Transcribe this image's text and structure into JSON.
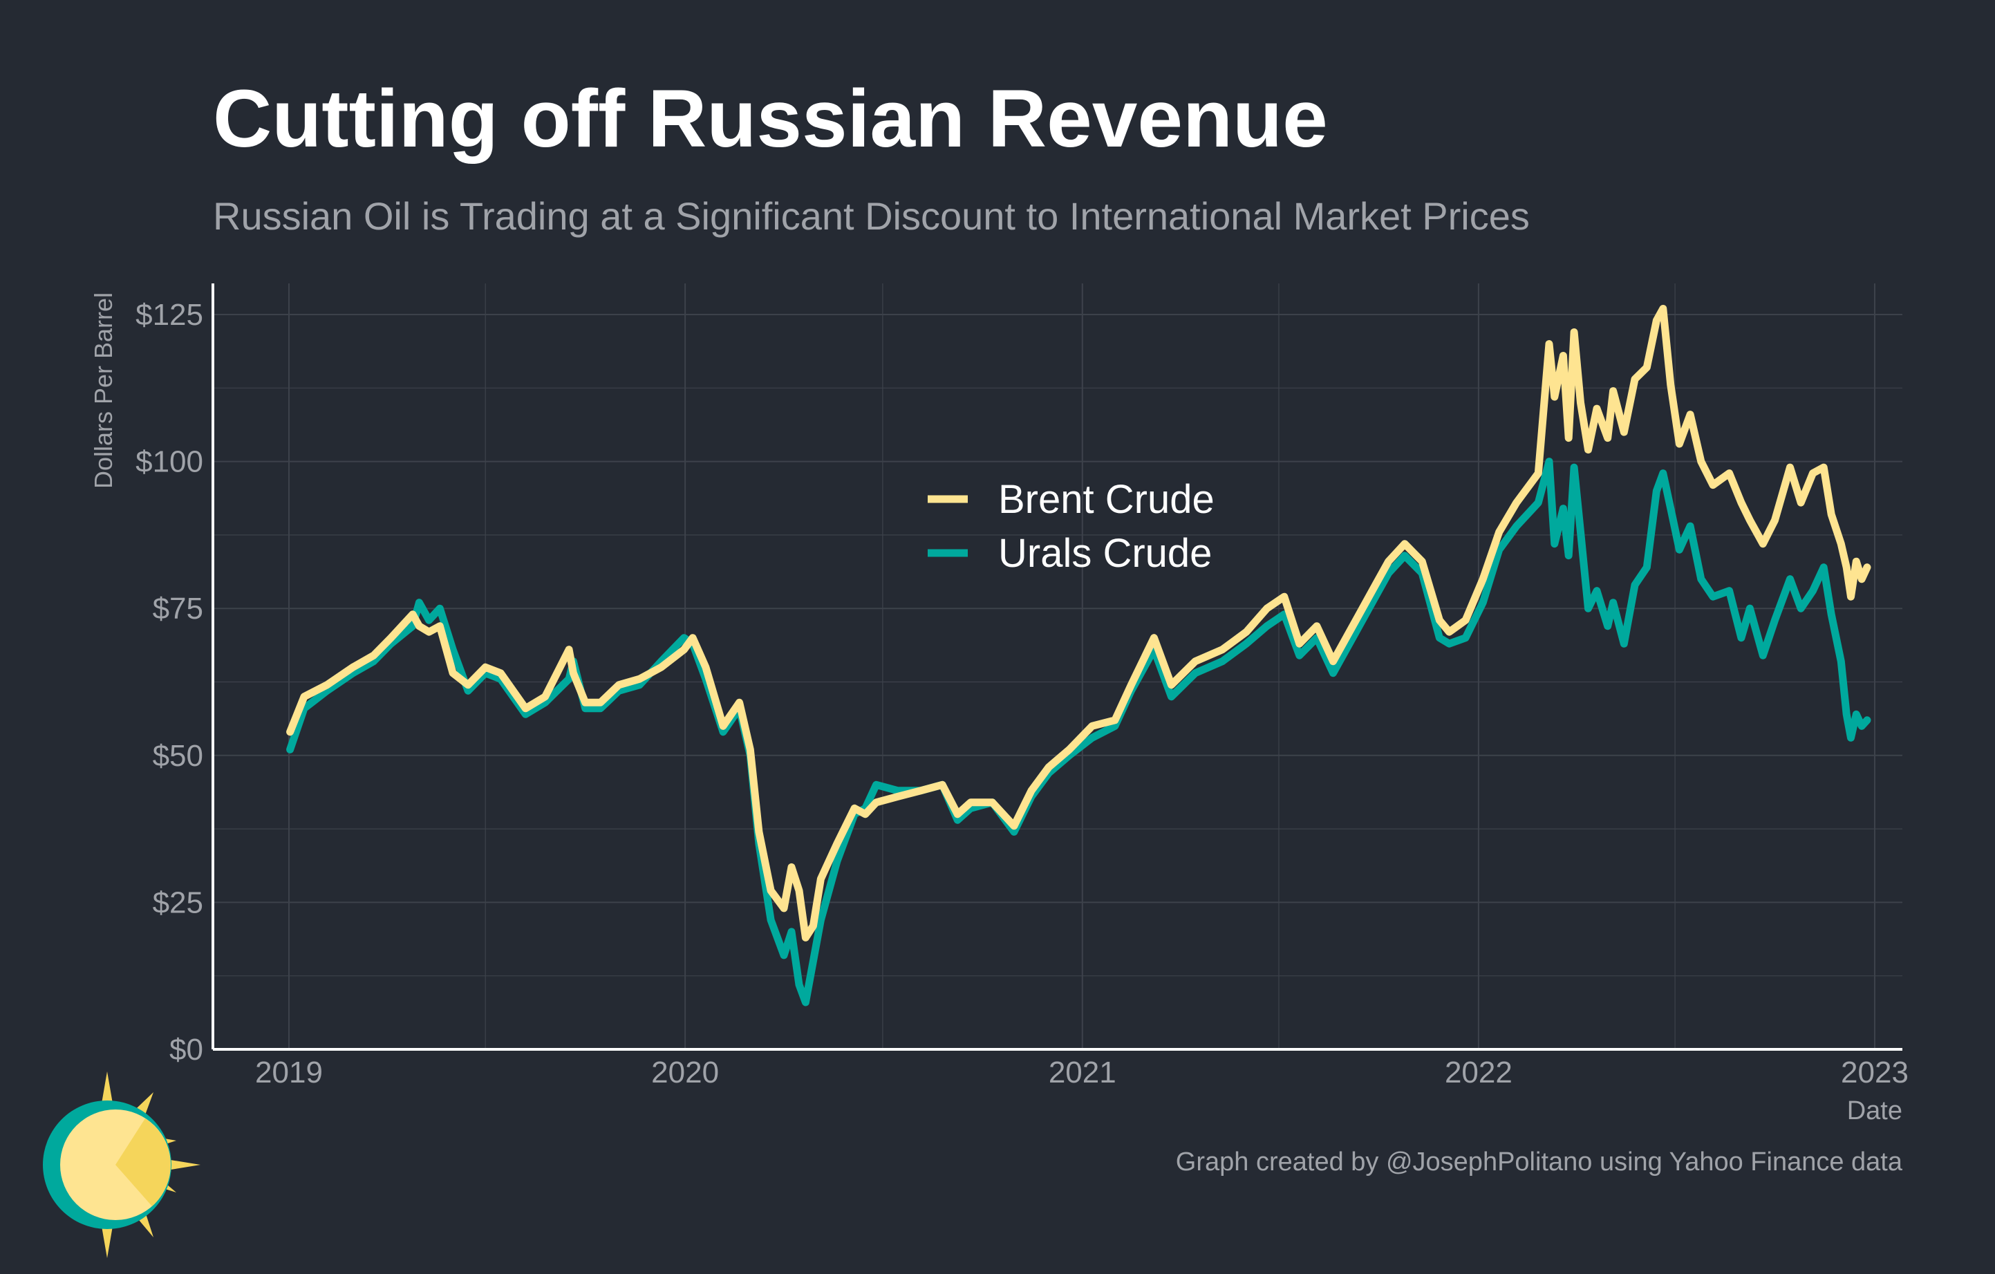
{
  "header": {
    "title": "Cutting off Russian Revenue",
    "subtitle": "Russian Oil is Trading at a Significant Discount to International Market Prices"
  },
  "footer": {
    "credit": "Graph created by @JosephPolitano using Yahoo Finance data"
  },
  "colors": {
    "background": "#252a33",
    "brent": "#fee491",
    "urals": "#00a99d",
    "grid": "#3d424b",
    "axis": "#ffffff",
    "tick_text": "#a0a3a9"
  },
  "chart_data": {
    "type": "line",
    "xlabel": "Date",
    "ylabel": "Dollars Per Barrel",
    "xlim": [
      "2019-01-01",
      "2023-01-01"
    ],
    "ylim": [
      0,
      125
    ],
    "x_ticks": [
      "2019",
      "2020",
      "2021",
      "2022",
      "2023"
    ],
    "y_ticks": [
      "$0",
      "$25",
      "$50",
      "$75",
      "$100",
      "$125"
    ],
    "y_tick_values": [
      0,
      25,
      50,
      75,
      100,
      125
    ],
    "grid": true,
    "legend_position": "center",
    "series": [
      {
        "name": "Urals Crude",
        "color": "#00a99d",
        "points": [
          [
            "2019-01-02",
            51
          ],
          [
            "2019-01-15",
            58
          ],
          [
            "2019-02-05",
            61
          ],
          [
            "2019-03-01",
            64
          ],
          [
            "2019-03-20",
            66
          ],
          [
            "2019-04-05",
            69
          ],
          [
            "2019-04-25",
            72
          ],
          [
            "2019-05-01",
            76
          ],
          [
            "2019-05-10",
            73
          ],
          [
            "2019-05-20",
            75
          ],
          [
            "2019-06-01",
            68
          ],
          [
            "2019-06-15",
            61
          ],
          [
            "2019-07-01",
            64
          ],
          [
            "2019-07-15",
            63
          ],
          [
            "2019-08-07",
            57
          ],
          [
            "2019-08-25",
            59
          ],
          [
            "2019-09-16",
            63
          ],
          [
            "2019-09-20",
            66
          ],
          [
            "2019-10-01",
            58
          ],
          [
            "2019-10-15",
            58
          ],
          [
            "2019-11-01",
            61
          ],
          [
            "2019-11-20",
            62
          ],
          [
            "2019-12-10",
            66
          ],
          [
            "2019-12-31",
            70
          ],
          [
            "2020-01-08",
            69
          ],
          [
            "2020-01-20",
            63
          ],
          [
            "2020-02-05",
            54
          ],
          [
            "2020-02-20",
            58
          ],
          [
            "2020-03-01",
            50
          ],
          [
            "2020-03-09",
            35
          ],
          [
            "2020-03-20",
            22
          ],
          [
            "2020-04-01",
            16
          ],
          [
            "2020-04-08",
            20
          ],
          [
            "2020-04-15",
            11
          ],
          [
            "2020-04-21",
            8
          ],
          [
            "2020-04-28",
            15
          ],
          [
            "2020-05-05",
            22
          ],
          [
            "2020-05-20",
            32
          ],
          [
            "2020-06-05",
            40
          ],
          [
            "2020-06-15",
            41
          ],
          [
            "2020-06-25",
            45
          ],
          [
            "2020-07-15",
            44
          ],
          [
            "2020-08-05",
            44
          ],
          [
            "2020-08-25",
            45
          ],
          [
            "2020-09-08",
            39
          ],
          [
            "2020-09-20",
            41
          ],
          [
            "2020-10-10",
            42
          ],
          [
            "2020-10-30",
            37
          ],
          [
            "2020-11-15",
            43
          ],
          [
            "2020-12-01",
            47
          ],
          [
            "2020-12-20",
            50
          ],
          [
            "2021-01-10",
            53
          ],
          [
            "2021-01-31",
            55
          ],
          [
            "2021-02-15",
            61
          ],
          [
            "2021-03-08",
            68
          ],
          [
            "2021-03-24",
            60
          ],
          [
            "2021-04-15",
            64
          ],
          [
            "2021-05-10",
            66
          ],
          [
            "2021-06-01",
            69
          ],
          [
            "2021-06-20",
            72
          ],
          [
            "2021-07-06",
            74
          ],
          [
            "2021-07-20",
            67
          ],
          [
            "2021-08-05",
            70
          ],
          [
            "2021-08-20",
            64
          ],
          [
            "2021-09-10",
            71
          ],
          [
            "2021-09-28",
            77
          ],
          [
            "2021-10-10",
            81
          ],
          [
            "2021-10-25",
            84
          ],
          [
            "2021-11-10",
            81
          ],
          [
            "2021-11-26",
            70
          ],
          [
            "2021-12-05",
            69
          ],
          [
            "2021-12-20",
            70
          ],
          [
            "2022-01-05",
            76
          ],
          [
            "2022-01-20",
            85
          ],
          [
            "2022-02-05",
            89
          ],
          [
            "2022-02-25",
            93
          ],
          [
            "2022-03-07",
            100
          ],
          [
            "2022-03-12",
            86
          ],
          [
            "2022-03-20",
            92
          ],
          [
            "2022-03-25",
            84
          ],
          [
            "2022-03-30",
            99
          ],
          [
            "2022-04-05",
            88
          ],
          [
            "2022-04-12",
            75
          ],
          [
            "2022-04-20",
            78
          ],
          [
            "2022-04-30",
            72
          ],
          [
            "2022-05-05",
            76
          ],
          [
            "2022-05-15",
            69
          ],
          [
            "2022-05-25",
            79
          ],
          [
            "2022-06-05",
            82
          ],
          [
            "2022-06-14",
            95
          ],
          [
            "2022-06-20",
            98
          ],
          [
            "2022-06-27",
            92
          ],
          [
            "2022-07-05",
            85
          ],
          [
            "2022-07-15",
            89
          ],
          [
            "2022-07-25",
            80
          ],
          [
            "2022-08-05",
            77
          ],
          [
            "2022-08-20",
            78
          ],
          [
            "2022-08-31",
            70
          ],
          [
            "2022-09-08",
            75
          ],
          [
            "2022-09-20",
            67
          ],
          [
            "2022-10-01",
            73
          ],
          [
            "2022-10-15",
            80
          ],
          [
            "2022-10-25",
            75
          ],
          [
            "2022-11-05",
            78
          ],
          [
            "2022-11-15",
            82
          ],
          [
            "2022-11-22",
            74
          ],
          [
            "2022-12-01",
            66
          ],
          [
            "2022-12-06",
            57
          ],
          [
            "2022-12-10",
            53
          ],
          [
            "2022-12-15",
            57
          ],
          [
            "2022-12-20",
            55
          ],
          [
            "2022-12-25",
            56
          ]
        ]
      },
      {
        "name": "Brent Crude",
        "color": "#fee491",
        "points": [
          [
            "2019-01-02",
            54
          ],
          [
            "2019-01-15",
            60
          ],
          [
            "2019-02-05",
            62
          ],
          [
            "2019-03-01",
            65
          ],
          [
            "2019-03-20",
            67
          ],
          [
            "2019-04-05",
            70
          ],
          [
            "2019-04-25",
            74
          ],
          [
            "2019-05-01",
            72
          ],
          [
            "2019-05-10",
            71
          ],
          [
            "2019-05-20",
            72
          ],
          [
            "2019-06-01",
            64
          ],
          [
            "2019-06-15",
            62
          ],
          [
            "2019-07-01",
            65
          ],
          [
            "2019-07-15",
            64
          ],
          [
            "2019-08-07",
            58
          ],
          [
            "2019-08-25",
            60
          ],
          [
            "2019-09-16",
            68
          ],
          [
            "2019-09-20",
            64
          ],
          [
            "2019-10-01",
            59
          ],
          [
            "2019-10-15",
            59
          ],
          [
            "2019-11-01",
            62
          ],
          [
            "2019-11-20",
            63
          ],
          [
            "2019-12-10",
            65
          ],
          [
            "2019-12-31",
            68
          ],
          [
            "2020-01-08",
            70
          ],
          [
            "2020-01-20",
            65
          ],
          [
            "2020-02-05",
            55
          ],
          [
            "2020-02-20",
            59
          ],
          [
            "2020-03-01",
            51
          ],
          [
            "2020-03-09",
            37
          ],
          [
            "2020-03-20",
            27
          ],
          [
            "2020-04-01",
            24
          ],
          [
            "2020-04-08",
            31
          ],
          [
            "2020-04-15",
            27
          ],
          [
            "2020-04-21",
            19
          ],
          [
            "2020-04-28",
            21
          ],
          [
            "2020-05-05",
            29
          ],
          [
            "2020-05-20",
            35
          ],
          [
            "2020-06-05",
            41
          ],
          [
            "2020-06-15",
            40
          ],
          [
            "2020-06-25",
            42
          ],
          [
            "2020-07-15",
            43
          ],
          [
            "2020-08-05",
            44
          ],
          [
            "2020-08-25",
            45
          ],
          [
            "2020-09-08",
            40
          ],
          [
            "2020-09-20",
            42
          ],
          [
            "2020-10-10",
            42
          ],
          [
            "2020-10-30",
            38
          ],
          [
            "2020-11-15",
            44
          ],
          [
            "2020-12-01",
            48
          ],
          [
            "2020-12-20",
            51
          ],
          [
            "2021-01-10",
            55
          ],
          [
            "2021-01-31",
            56
          ],
          [
            "2021-02-15",
            62
          ],
          [
            "2021-03-08",
            70
          ],
          [
            "2021-03-24",
            62
          ],
          [
            "2021-04-15",
            66
          ],
          [
            "2021-05-10",
            68
          ],
          [
            "2021-06-01",
            71
          ],
          [
            "2021-06-20",
            75
          ],
          [
            "2021-07-06",
            77
          ],
          [
            "2021-07-20",
            69
          ],
          [
            "2021-08-05",
            72
          ],
          [
            "2021-08-20",
            66
          ],
          [
            "2021-09-10",
            73
          ],
          [
            "2021-09-28",
            79
          ],
          [
            "2021-10-10",
            83
          ],
          [
            "2021-10-25",
            86
          ],
          [
            "2021-11-10",
            83
          ],
          [
            "2021-11-26",
            73
          ],
          [
            "2021-12-05",
            71
          ],
          [
            "2021-12-20",
            73
          ],
          [
            "2022-01-05",
            80
          ],
          [
            "2022-01-20",
            88
          ],
          [
            "2022-02-05",
            93
          ],
          [
            "2022-02-25",
            98
          ],
          [
            "2022-03-07",
            120
          ],
          [
            "2022-03-12",
            111
          ],
          [
            "2022-03-20",
            118
          ],
          [
            "2022-03-25",
            104
          ],
          [
            "2022-03-30",
            122
          ],
          [
            "2022-04-05",
            110
          ],
          [
            "2022-04-12",
            102
          ],
          [
            "2022-04-20",
            109
          ],
          [
            "2022-04-30",
            104
          ],
          [
            "2022-05-05",
            112
          ],
          [
            "2022-05-15",
            105
          ],
          [
            "2022-05-25",
            114
          ],
          [
            "2022-06-05",
            116
          ],
          [
            "2022-06-14",
            124
          ],
          [
            "2022-06-20",
            126
          ],
          [
            "2022-06-27",
            113
          ],
          [
            "2022-07-05",
            103
          ],
          [
            "2022-07-15",
            108
          ],
          [
            "2022-07-25",
            100
          ],
          [
            "2022-08-05",
            96
          ],
          [
            "2022-08-20",
            98
          ],
          [
            "2022-08-31",
            93
          ],
          [
            "2022-09-08",
            90
          ],
          [
            "2022-09-20",
            86
          ],
          [
            "2022-10-01",
            90
          ],
          [
            "2022-10-15",
            99
          ],
          [
            "2022-10-25",
            93
          ],
          [
            "2022-11-05",
            98
          ],
          [
            "2022-11-15",
            99
          ],
          [
            "2022-11-22",
            91
          ],
          [
            "2022-12-01",
            86
          ],
          [
            "2022-12-06",
            82
          ],
          [
            "2022-12-10",
            77
          ],
          [
            "2022-12-15",
            83
          ],
          [
            "2022-12-20",
            80
          ],
          [
            "2022-12-25",
            82
          ]
        ]
      }
    ]
  }
}
